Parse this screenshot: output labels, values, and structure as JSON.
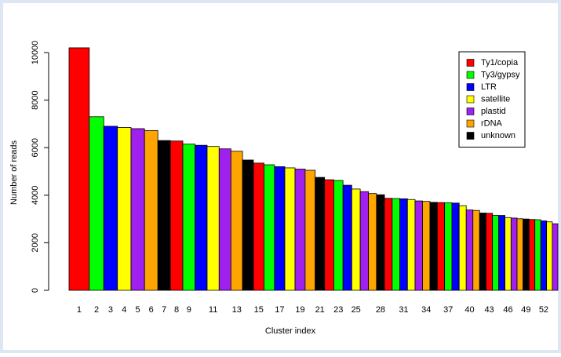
{
  "chart_data": {
    "type": "bar",
    "xlabel": "Cluster index",
    "ylabel": "Number of reads",
    "categories": [
      "1",
      "2",
      "3",
      "4",
      "5",
      "6",
      "7",
      "8",
      "9",
      null,
      "11",
      null,
      "13",
      null,
      "15",
      null,
      "17",
      null,
      "19",
      null,
      "21",
      null,
      "23",
      null,
      "25",
      null,
      null,
      "28",
      null,
      null,
      "31",
      null,
      null,
      "34",
      null,
      null,
      "37",
      null,
      null,
      "40",
      null,
      null,
      "43",
      null,
      null,
      "46",
      null,
      null,
      "49",
      null,
      null,
      "52",
      null,
      null
    ],
    "values": [
      10200,
      7300,
      6900,
      6850,
      6800,
      6720,
      6300,
      6280,
      6150,
      6100,
      6050,
      5950,
      5850,
      5480,
      5350,
      5280,
      5200,
      5150,
      5100,
      5050,
      4750,
      4650,
      4620,
      4420,
      4260,
      4150,
      4070,
      4020,
      3870,
      3860,
      3850,
      3820,
      3760,
      3740,
      3700,
      3690,
      3680,
      3670,
      3560,
      3380,
      3360,
      3250,
      3240,
      3150,
      3150,
      3060,
      3040,
      3010,
      3000,
      2980,
      2970,
      2920,
      2880,
      2800
    ],
    "series": [
      {
        "name": "Ty1/copia",
        "color": "#ff0000"
      },
      {
        "name": "Ty3/gypsy",
        "color": "#00ff00"
      },
      {
        "name": "LTR",
        "color": "#0000ff"
      },
      {
        "name": "satellite",
        "color": "#ffff00"
      },
      {
        "name": "plastid",
        "color": "#a020f0"
      },
      {
        "name": "rDNA",
        "color": "#ffa500"
      },
      {
        "name": "unknown",
        "color": "#000000"
      }
    ],
    "ylim": [
      0,
      11000
    ],
    "yticks": [
      0,
      2000,
      4000,
      6000,
      8000,
      10000
    ],
    "legend": "top-right"
  }
}
